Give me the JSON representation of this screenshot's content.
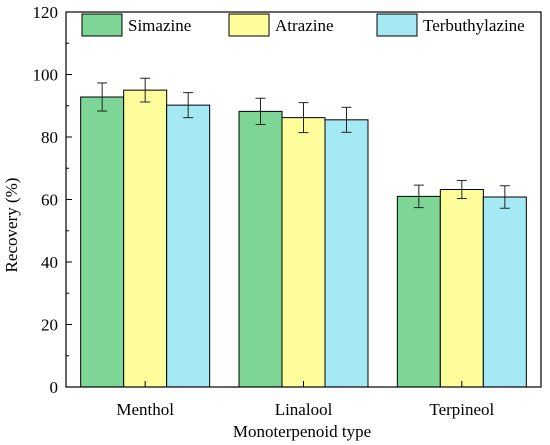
{
  "chart_data": {
    "type": "bar",
    "title": "",
    "xlabel": "Monoterpenoid type",
    "ylabel": "Recovery (%)",
    "ylim": [
      0,
      120
    ],
    "yticks": [
      0,
      20,
      40,
      60,
      80,
      100,
      120
    ],
    "categories": [
      "Menthol",
      "Linalool",
      "Terpineol"
    ],
    "series": [
      {
        "name": "Simazine",
        "color": "#7dd696",
        "values": [
          92.8,
          88.2,
          61.0
        ],
        "errors": [
          4.5,
          4.2,
          3.6
        ]
      },
      {
        "name": "Atrazine",
        "color": "#fdfd9b",
        "values": [
          95.0,
          86.2,
          63.2
        ],
        "errors": [
          3.8,
          4.8,
          2.9
        ]
      },
      {
        "name": "Terbuthylazine",
        "color": "#a4e9f3",
        "values": [
          90.2,
          85.5,
          60.8
        ],
        "errors": [
          4.0,
          4.0,
          3.6
        ]
      }
    ],
    "grid": false,
    "legend_position": "top"
  }
}
